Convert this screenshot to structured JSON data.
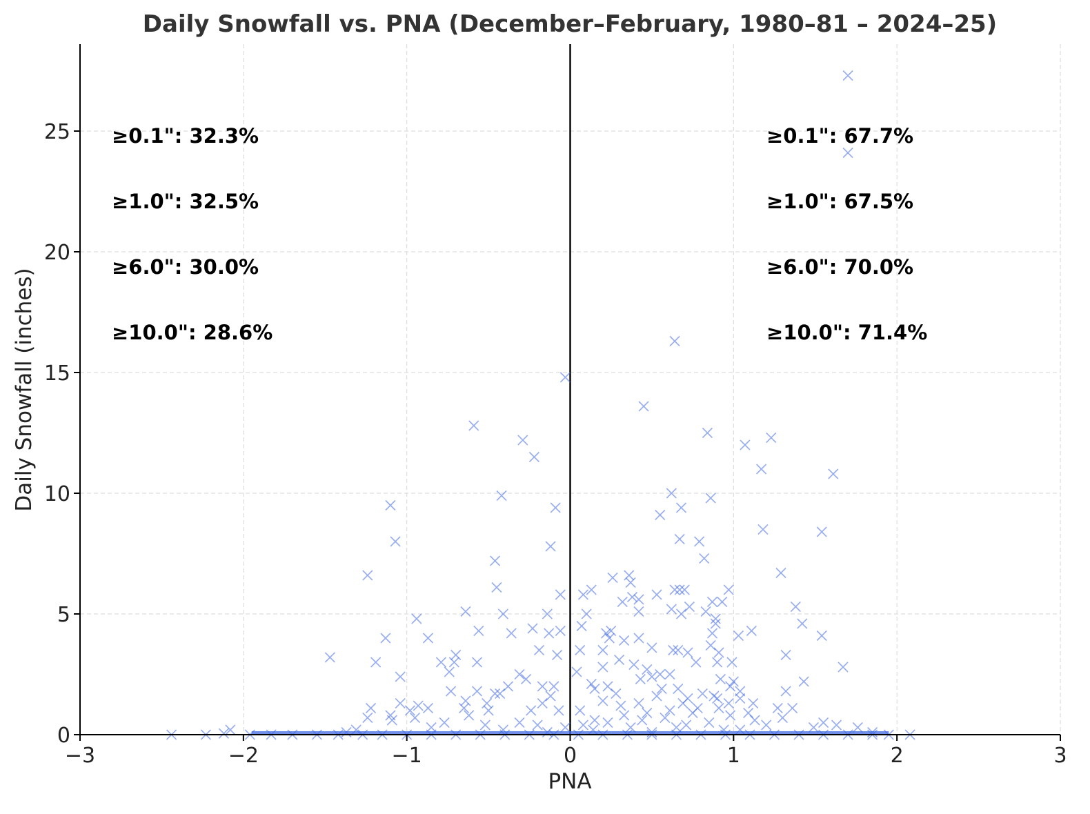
{
  "chart_data": {
    "type": "scatter",
    "title": "Daily Snowfall vs. PNA (December–February, 1980–81 – 2024–25)",
    "xlabel": "PNA",
    "ylabel": "Daily Snowfall (inches)",
    "xlim": [
      -3,
      3
    ],
    "ylim": [
      0,
      28.6
    ],
    "xticks": [
      -3,
      -2,
      -1,
      0,
      1,
      2,
      3
    ],
    "xtick_labels": [
      "−3",
      "−2",
      "−1",
      "0",
      "1",
      "2",
      "3"
    ],
    "yticks": [
      0,
      5,
      10,
      15,
      20,
      25
    ],
    "ytick_labels": [
      "0",
      "5",
      "10",
      "15",
      "20",
      "25"
    ],
    "grid": true,
    "marker": "x",
    "color": "#4169e1",
    "annotations": {
      "negative_pna": [
        "≥0.1\": 32.3%",
        "≥1.0\": 32.5%",
        "≥6.0\": 30.0%",
        "≥10.0\": 28.6%"
      ],
      "positive_pna": [
        "≥0.1\": 67.7%",
        "≥1.0\": 67.5%",
        "≥6.0\": 70.0%",
        "≥10.0\": 71.4%"
      ]
    },
    "series": [
      {
        "name": "Daily snowfall",
        "points": [
          [
            1.7,
            27.3
          ],
          [
            1.7,
            24.1
          ],
          [
            0.64,
            16.3
          ],
          [
            -0.03,
            14.8
          ],
          [
            0.45,
            13.6
          ],
          [
            -0.59,
            12.8
          ],
          [
            0.84,
            12.5
          ],
          [
            1.23,
            12.3
          ],
          [
            -0.29,
            12.2
          ],
          [
            1.07,
            12.0
          ],
          [
            -0.22,
            11.5
          ],
          [
            1.17,
            11.0
          ],
          [
            1.61,
            10.8
          ],
          [
            0.62,
            10.0
          ],
          [
            -0.42,
            9.9
          ],
          [
            0.86,
            9.8
          ],
          [
            -1.1,
            9.5
          ],
          [
            -0.09,
            9.4
          ],
          [
            0.68,
            9.4
          ],
          [
            0.55,
            9.1
          ],
          [
            1.18,
            8.5
          ],
          [
            1.54,
            8.4
          ],
          [
            0.67,
            8.1
          ],
          [
            -1.07,
            8.0
          ],
          [
            0.79,
            8.0
          ],
          [
            -0.12,
            7.8
          ],
          [
            0.82,
            7.3
          ],
          [
            -0.46,
            7.2
          ],
          [
            1.29,
            6.7
          ],
          [
            -1.24,
            6.6
          ],
          [
            0.36,
            6.6
          ],
          [
            0.26,
            6.5
          ],
          [
            0.37,
            6.3
          ],
          [
            -0.45,
            6.1
          ],
          [
            0.64,
            6.0
          ],
          [
            0.67,
            6.0
          ],
          [
            0.7,
            6.0
          ],
          [
            0.13,
            6.0
          ],
          [
            0.97,
            6.0
          ],
          [
            0.08,
            5.8
          ],
          [
            -0.06,
            5.8
          ],
          [
            0.53,
            5.8
          ],
          [
            0.38,
            5.7
          ],
          [
            0.42,
            5.6
          ],
          [
            0.32,
            5.5
          ],
          [
            0.87,
            5.5
          ],
          [
            0.93,
            5.5
          ],
          [
            1.38,
            5.3
          ],
          [
            0.73,
            5.3
          ],
          [
            0.62,
            5.2
          ],
          [
            0.83,
            5.1
          ],
          [
            -0.64,
            5.1
          ],
          [
            0.42,
            5.1
          ],
          [
            -0.14,
            5.0
          ],
          [
            0.1,
            5.0
          ],
          [
            0.68,
            5.0
          ],
          [
            -0.41,
            5.0
          ],
          [
            -0.94,
            4.8
          ],
          [
            0.89,
            4.8
          ],
          [
            0.89,
            4.6
          ],
          [
            1.42,
            4.6
          ],
          [
            0.07,
            4.5
          ],
          [
            -0.23,
            4.4
          ],
          [
            -0.06,
            4.3
          ],
          [
            0.25,
            4.3
          ],
          [
            -0.56,
            4.3
          ],
          [
            1.11,
            4.3
          ],
          [
            -0.36,
            4.2
          ],
          [
            0.22,
            4.2
          ],
          [
            -0.13,
            4.2
          ],
          [
            0.87,
            4.2
          ],
          [
            1.03,
            4.1
          ],
          [
            1.54,
            4.1
          ],
          [
            -1.13,
            4.0
          ],
          [
            -0.87,
            4.0
          ],
          [
            0.24,
            4.0
          ],
          [
            0.42,
            4.0
          ],
          [
            0.33,
            3.9
          ],
          [
            0.86,
            3.7
          ],
          [
            0.5,
            3.6
          ],
          [
            -0.19,
            3.5
          ],
          [
            0.06,
            3.5
          ],
          [
            0.2,
            3.5
          ],
          [
            0.66,
            3.5
          ],
          [
            0.63,
            3.5
          ],
          [
            0.72,
            3.4
          ],
          [
            0.91,
            3.4
          ],
          [
            -0.08,
            3.3
          ],
          [
            1.32,
            3.3
          ],
          [
            -0.7,
            3.3
          ],
          [
            -1.47,
            3.2
          ],
          [
            0.3,
            3.1
          ],
          [
            0.9,
            3.0
          ],
          [
            -1.19,
            3.0
          ],
          [
            -0.57,
            3.0
          ],
          [
            -0.79,
            3.0
          ],
          [
            0.77,
            3.0
          ],
          [
            0.99,
            3.0
          ],
          [
            -0.71,
            3.0
          ],
          [
            0.39,
            2.9
          ],
          [
            0.2,
            2.8
          ],
          [
            1.67,
            2.8
          ],
          [
            0.47,
            2.7
          ],
          [
            -0.74,
            2.6
          ],
          [
            0.04,
            2.6
          ],
          [
            0.55,
            2.5
          ],
          [
            -0.31,
            2.5
          ],
          [
            0.61,
            2.5
          ],
          [
            0.5,
            2.4
          ],
          [
            -1.04,
            2.4
          ],
          [
            0.43,
            2.3
          ],
          [
            -0.27,
            2.3
          ],
          [
            0.92,
            2.3
          ],
          [
            1.0,
            2.2
          ],
          [
            1.43,
            2.2
          ],
          [
            0.13,
            2.1
          ],
          [
            0.98,
            2.0
          ],
          [
            0.23,
            2.0
          ],
          [
            -0.17,
            2.0
          ],
          [
            -0.1,
            2.0
          ],
          [
            -0.38,
            2.0
          ],
          [
            0.66,
            1.9
          ],
          [
            0.15,
            1.9
          ],
          [
            0.56,
            1.9
          ],
          [
            1.04,
            1.8
          ],
          [
            -0.73,
            1.8
          ],
          [
            -0.57,
            1.8
          ],
          [
            1.32,
            1.8
          ],
          [
            0.28,
            1.7
          ],
          [
            -0.43,
            1.7
          ],
          [
            -0.46,
            1.7
          ],
          [
            0.81,
            1.7
          ],
          [
            0.53,
            1.6
          ],
          [
            -0.12,
            1.6
          ],
          [
            0.88,
            1.6
          ],
          [
            0.72,
            1.5
          ],
          [
            0.9,
            1.5
          ],
          [
            1.04,
            1.5
          ],
          [
            0.2,
            1.4
          ],
          [
            -0.64,
            1.4
          ],
          [
            -0.51,
            1.3
          ],
          [
            0.42,
            1.3
          ],
          [
            1.12,
            1.3
          ],
          [
            -0.17,
            1.3
          ],
          [
            -1.04,
            1.3
          ],
          [
            0.69,
            1.3
          ],
          [
            0.97,
            1.3
          ],
          [
            0.31,
            1.2
          ],
          [
            -0.93,
            1.2
          ],
          [
            -1.22,
            1.1
          ],
          [
            0.91,
            1.1
          ],
          [
            -0.87,
            1.1
          ],
          [
            -0.65,
            1.1
          ],
          [
            1.36,
            1.1
          ],
          [
            1.27,
            1.1
          ],
          [
            0.78,
            1.1
          ],
          [
            -0.07,
            1.0
          ],
          [
            0.06,
            1.0
          ],
          [
            -0.5,
            1.0
          ],
          [
            -0.98,
            1.0
          ],
          [
            0.61,
            1.0
          ],
          [
            -0.24,
            1.0
          ],
          [
            0.75,
            0.9
          ],
          [
            0.47,
            0.9
          ],
          [
            1.09,
            0.9
          ],
          [
            -1.1,
            0.8
          ],
          [
            -0.62,
            0.8
          ],
          [
            0.98,
            0.8
          ],
          [
            0.33,
            0.8
          ],
          [
            -1.24,
            0.7
          ],
          [
            1.3,
            0.7
          ],
          [
            -0.95,
            0.7
          ],
          [
            0.58,
            0.7
          ],
          [
            0.15,
            0.6
          ],
          [
            -1.09,
            0.6
          ],
          [
            0.44,
            0.6
          ],
          [
            1.13,
            0.6
          ],
          [
            -0.77,
            0.5
          ],
          [
            0.85,
            0.5
          ],
          [
            -0.31,
            0.5
          ],
          [
            0.23,
            0.5
          ],
          [
            1.55,
            0.5
          ],
          [
            -0.52,
            0.4
          ],
          [
            0.08,
            0.4
          ],
          [
            0.71,
            0.4
          ],
          [
            -0.2,
            0.4
          ],
          [
            1.2,
            0.4
          ],
          [
            1.63,
            0.4
          ],
          [
            0.37,
            0.3
          ],
          [
            -0.03,
            0.3
          ],
          [
            1.49,
            0.3
          ],
          [
            -0.85,
            0.3
          ],
          [
            0.65,
            0.3
          ],
          [
            1.76,
            0.3
          ],
          [
            -1.31,
            0.2
          ],
          [
            -0.41,
            0.2
          ],
          [
            0.14,
            0.2
          ],
          [
            0.94,
            0.2
          ],
          [
            1.04,
            0.2
          ],
          [
            -2.08,
            0.2
          ],
          [
            -1.37,
            0.1
          ],
          [
            -0.14,
            0.1
          ],
          [
            0.5,
            0.1
          ],
          [
            1.85,
            0.1
          ],
          [
            -2.12,
            0.05
          ],
          [
            -2.44,
            0.0
          ],
          [
            -2.23,
            0.0
          ],
          [
            -1.96,
            0.0
          ],
          [
            -1.83,
            0.0
          ],
          [
            -1.7,
            0.0
          ],
          [
            -1.55,
            0.0
          ],
          [
            -1.42,
            0.0
          ],
          [
            -1.27,
            0.0
          ],
          [
            -1.15,
            0.0
          ],
          [
            -1.0,
            0.0
          ],
          [
            -0.85,
            0.0
          ],
          [
            -0.7,
            0.0
          ],
          [
            -0.55,
            0.0
          ],
          [
            -0.4,
            0.0
          ],
          [
            -0.25,
            0.0
          ],
          [
            -0.1,
            0.0
          ],
          [
            0.05,
            0.0
          ],
          [
            0.2,
            0.0
          ],
          [
            0.35,
            0.0
          ],
          [
            0.5,
            0.0
          ],
          [
            0.65,
            0.0
          ],
          [
            0.8,
            0.0
          ],
          [
            0.95,
            0.0
          ],
          [
            1.1,
            0.0
          ],
          [
            1.25,
            0.0
          ],
          [
            1.4,
            0.0
          ],
          [
            1.55,
            0.0
          ],
          [
            1.7,
            0.0
          ],
          [
            1.85,
            0.0
          ],
          [
            1.95,
            0.0
          ],
          [
            2.08,
            0.0
          ]
        ]
      }
    ]
  }
}
